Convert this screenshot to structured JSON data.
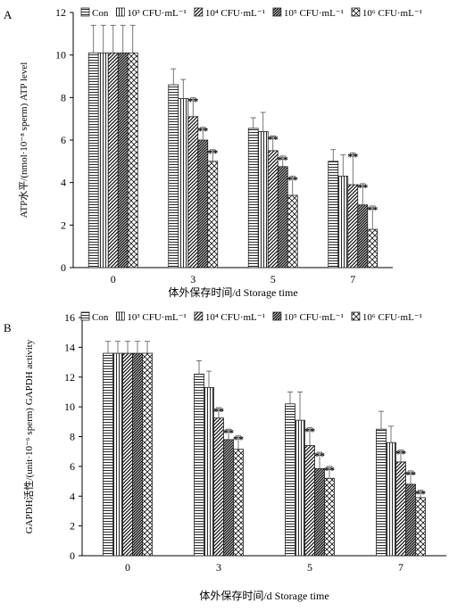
{
  "chart_data": [
    {
      "type": "bar",
      "panel_label": "A",
      "categories": [
        "0",
        "3",
        "5",
        "7"
      ],
      "xlabel": "体外保存时间/d Storage time",
      "ylabel": "ATP水平/(nmol·10⁻⁸ sperm) ATP level",
      "ylim": [
        0,
        12
      ],
      "yticks": [
        "0",
        "2",
        "4",
        "6",
        "8",
        "10",
        "12"
      ],
      "grid": false,
      "legend_position": "top",
      "series": [
        {
          "name": "Con",
          "legend_label": "Con",
          "values": [
            10.1,
            8.6,
            6.55,
            5.0
          ],
          "errors": [
            1.3,
            0.75,
            0.5,
            0.55
          ],
          "stars": [
            "",
            "",
            "",
            ""
          ],
          "pattern": "hlines"
        },
        {
          "name": "10³ CFU·mL⁻¹",
          "legend_label": "10³ CFU·mL⁻¹",
          "values": [
            10.1,
            7.95,
            6.4,
            4.3
          ],
          "errors": [
            1.3,
            0.9,
            0.9,
            1.0
          ],
          "stars": [
            "",
            "",
            "",
            ""
          ],
          "pattern": "vlines"
        },
        {
          "name": "10⁴ CFU·mL⁻¹",
          "legend_label": "10⁴ CFU·mL⁻¹",
          "values": [
            10.1,
            7.1,
            5.5,
            3.9
          ],
          "errors": [
            1.3,
            0.9,
            0.7,
            1.5
          ],
          "stars": [
            "",
            "**",
            "**",
            "**"
          ],
          "pattern": "diag"
        },
        {
          "name": "10⁵ CFU·mL⁻¹",
          "legend_label": "10⁵ CFU·mL⁻¹",
          "values": [
            10.1,
            6.0,
            4.75,
            2.95
          ],
          "errors": [
            1.3,
            0.6,
            0.5,
            1.0
          ],
          "stars": [
            "",
            "**",
            "**",
            "**"
          ],
          "pattern": "dense"
        },
        {
          "name": "10⁶ CFU·mL⁻¹",
          "legend_label": "10⁶ CFU·mL⁻¹",
          "values": [
            10.1,
            5.0,
            3.4,
            1.8
          ],
          "errors": [
            1.3,
            0.55,
            0.9,
            1.1
          ],
          "stars": [
            "",
            "**",
            "**",
            "**"
          ],
          "pattern": "cross"
        }
      ]
    },
    {
      "type": "bar",
      "panel_label": "B",
      "categories": [
        "0",
        "3",
        "5",
        "7"
      ],
      "xlabel": "体外保存时间/d Storage time",
      "ylabel": "GAPDH活性/(unit·10⁻⁶ sperm) GAPDH activity",
      "ylim": [
        0,
        16
      ],
      "yticks": [
        "0",
        "2",
        "4",
        "6",
        "8",
        "10",
        "12",
        "14",
        "16"
      ],
      "grid": false,
      "legend_position": "top",
      "series": [
        {
          "name": "Con",
          "legend_label": "Con",
          "values": [
            13.6,
            12.2,
            10.2,
            8.5
          ],
          "errors": [
            0.8,
            0.9,
            0.8,
            1.2
          ],
          "stars": [
            "",
            "",
            "",
            ""
          ],
          "pattern": "hlines"
        },
        {
          "name": "10³ CFU·mL⁻¹",
          "legend_label": "10³ CFU·mL⁻¹",
          "values": [
            13.6,
            11.3,
            9.1,
            7.6
          ],
          "errors": [
            0.8,
            1.1,
            1.9,
            1.1
          ],
          "stars": [
            "",
            "",
            "",
            ""
          ],
          "pattern": "vlines"
        },
        {
          "name": "10⁴ CFU·mL⁻¹",
          "legend_label": "10⁴ CFU·mL⁻¹",
          "values": [
            13.6,
            9.25,
            7.4,
            6.3
          ],
          "errors": [
            0.8,
            0.7,
            1.2,
            0.8
          ],
          "stars": [
            "",
            "**",
            "**",
            "**"
          ],
          "pattern": "diag"
        },
        {
          "name": "10⁵ CFU·mL⁻¹",
          "legend_label": "10⁵ CFU·mL⁻¹",
          "values": [
            13.6,
            7.8,
            5.85,
            4.8
          ],
          "errors": [
            0.8,
            0.7,
            1.1,
            0.9
          ],
          "stars": [
            "",
            "**",
            "**",
            "**"
          ],
          "pattern": "dense"
        },
        {
          "name": "10⁶ CFU·mL⁻¹",
          "legend_label": "10⁶ CFU·mL⁻¹",
          "values": [
            13.6,
            7.15,
            5.2,
            3.9
          ],
          "errors": [
            0.8,
            0.9,
            0.8,
            0.5
          ],
          "stars": [
            "",
            "**",
            "**",
            "**"
          ],
          "pattern": "cross"
        }
      ]
    }
  ]
}
